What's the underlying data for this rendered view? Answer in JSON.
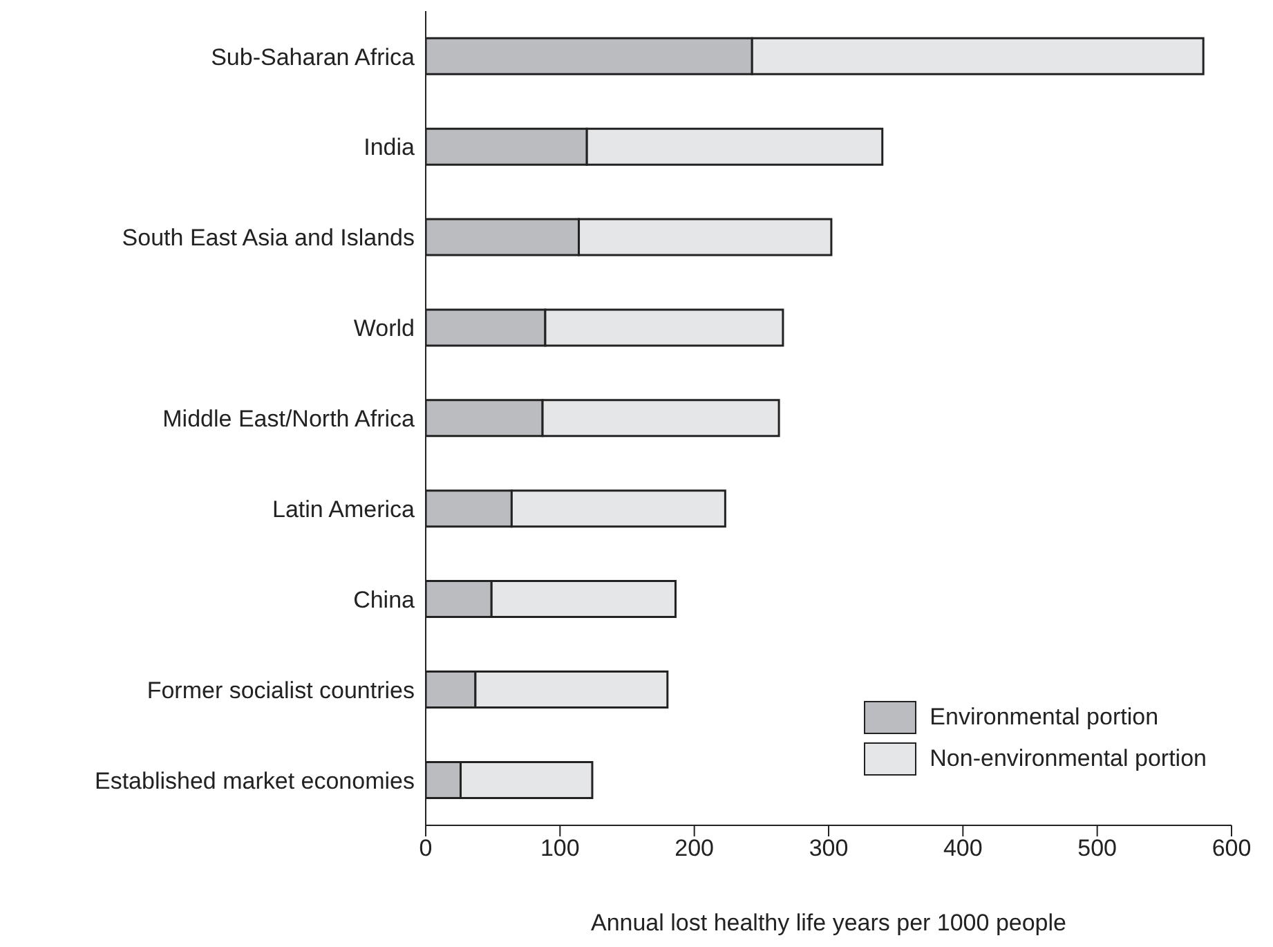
{
  "chart_data": {
    "type": "bar",
    "orientation": "horizontal",
    "stacked": true,
    "xlabel": "Annual lost healthy life years per 1000 people",
    "categories": [
      "Sub-Saharan Africa",
      "India",
      "South East Asia and Islands",
      "World",
      "Middle East/North Africa",
      "Latin America",
      "China",
      "Former socialist countries",
      "Established market economies"
    ],
    "series": [
      {
        "name": "Environmental portion",
        "color": "#bbbcc0",
        "values": [
          243,
          120,
          114,
          89,
          87,
          64,
          49,
          37,
          26
        ]
      },
      {
        "name": "Non-environmental portion",
        "color": "#e5e6e7",
        "values": [
          336,
          220,
          188,
          177,
          176,
          159,
          137,
          143,
          98
        ]
      }
    ],
    "xlim": [
      0,
      600
    ],
    "xticks": [
      0,
      100,
      200,
      300,
      400,
      500,
      600
    ],
    "grid": false,
    "legend": "bottom right"
  }
}
